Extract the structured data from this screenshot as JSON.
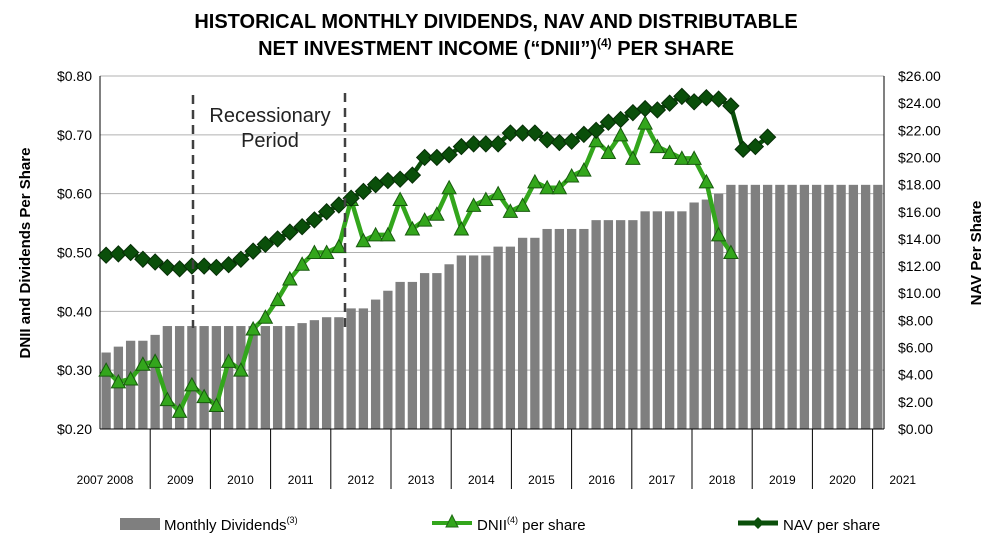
{
  "title_line1": "HISTORICAL MONTHLY DIVIDENDS, NAV AND DISTRIBUTABLE",
  "title_line2_main": "NET INVESTMENT INCOME (“DNII”)",
  "title_line2_sup": "(4)",
  "title_line2_tail": " PER SHARE",
  "annotation": {
    "line1": "Recessionary",
    "line2": "Period"
  },
  "chart_data": {
    "type": "bar+line",
    "ylabel": "DNII and Dividends Per Share",
    "y2label": "NAV Per Share",
    "ylim": [
      0.2,
      0.8
    ],
    "y2lim": [
      0,
      26
    ],
    "y_ticks": [
      "$0.20",
      "$0.30",
      "$0.40",
      "$0.50",
      "$0.60",
      "$0.70",
      "$0.80"
    ],
    "y2_ticks": [
      "$0.00",
      "$2.00",
      "$4.00",
      "$6.00",
      "$8.00",
      "$10.00",
      "$12.00",
      "$14.00",
      "$16.00",
      "$18.00",
      "$20.00",
      "$22.00",
      "$24.00",
      "$26.00"
    ],
    "x_ticks": [
      "2007",
      "2008",
      "2009",
      "2010",
      "2011",
      "2012",
      "2013",
      "2014",
      "2015",
      "2016",
      "2017",
      "2018",
      "2019",
      "2020",
      "2021"
    ],
    "grid": true,
    "legend_position": "bottom",
    "series": [
      {
        "name": "Monthly Dividends",
        "name_sup": "(3)",
        "type": "bar",
        "axis": "left",
        "color": "#7f7f7f",
        "values": [
          0.33,
          0.34,
          0.35,
          0.35,
          0.36,
          0.375,
          0.375,
          0.375,
          0.375,
          0.375,
          0.375,
          0.375,
          0.375,
          0.375,
          0.375,
          0.375,
          0.38,
          0.385,
          0.39,
          0.39,
          0.405,
          0.405,
          0.42,
          0.435,
          0.45,
          0.45,
          0.465,
          0.465,
          0.48,
          0.495,
          0.495,
          0.495,
          0.51,
          0.51,
          0.525,
          0.525,
          0.54,
          0.54,
          0.54,
          0.54,
          0.555,
          0.555,
          0.555,
          0.555,
          0.57,
          0.57,
          0.57,
          0.57,
          0.585,
          0.59,
          0.6,
          0.615,
          0.615,
          0.615,
          0.615,
          0.615,
          0.615,
          0.615,
          0.615,
          0.615,
          0.615,
          0.615,
          0.615,
          0.615
        ]
      },
      {
        "name": "DNII",
        "name_sup": "(4)",
        "name_tail": " per share",
        "type": "line",
        "axis": "left",
        "color": "#33a61c",
        "marker": "triangle",
        "values": [
          0.3,
          0.28,
          0.285,
          0.31,
          0.315,
          0.25,
          0.23,
          0.275,
          0.255,
          0.24,
          0.315,
          0.3,
          0.37,
          0.39,
          0.42,
          0.455,
          0.48,
          0.5,
          0.5,
          0.51,
          0.59,
          0.52,
          0.53,
          0.53,
          0.59,
          0.54,
          0.555,
          0.565,
          0.61,
          0.54,
          0.58,
          0.59,
          0.6,
          0.57,
          0.58,
          0.62,
          0.61,
          0.61,
          0.63,
          0.64,
          0.69,
          0.67,
          0.7,
          0.66,
          0.72,
          0.68,
          0.67,
          0.66,
          0.66,
          0.62,
          0.53,
          0.5
        ]
      },
      {
        "name": "NAV per share",
        "type": "line",
        "axis": "right",
        "color": "#0a4f0a",
        "marker": "diamond",
        "values": [
          12.8,
          12.9,
          13.0,
          12.5,
          12.3,
          11.9,
          11.8,
          12.0,
          12.0,
          11.9,
          12.1,
          12.5,
          13.1,
          13.6,
          14.0,
          14.5,
          14.9,
          15.4,
          16.0,
          16.5,
          17.0,
          17.5,
          18.0,
          18.3,
          18.4,
          18.7,
          20.0,
          20.0,
          20.2,
          20.8,
          21.0,
          21.0,
          21.0,
          21.8,
          21.8,
          21.8,
          21.3,
          21.1,
          21.2,
          21.7,
          22.0,
          22.6,
          22.8,
          23.3,
          23.6,
          23.5,
          24.0,
          24.5,
          24.1,
          24.4,
          24.3,
          23.8,
          20.6,
          20.8,
          21.5
        ]
      }
    ]
  }
}
